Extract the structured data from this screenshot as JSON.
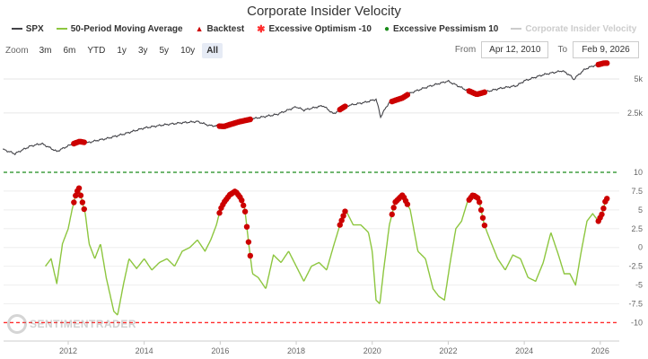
{
  "chart_data": {
    "type": "line",
    "title": "Corporate Insider Velocity",
    "legend": [
      {
        "name": "SPX",
        "color": "#434348",
        "kind": "line",
        "visible": true
      },
      {
        "name": "50-Period Moving Average",
        "color": "#8dc63f",
        "kind": "line",
        "visible": true
      },
      {
        "name": "Backtest",
        "color": "#cc0000",
        "kind": "triangle",
        "visible": true
      },
      {
        "name": "Excessive Optimism -10",
        "color": "#ff2d2d",
        "kind": "dashed",
        "visible": true
      },
      {
        "name": "Excessive Pessimism 10",
        "color": "#1a8c1a",
        "kind": "dashed",
        "visible": true
      },
      {
        "name": "Corporate Insider Velocity",
        "color": "#cccccc",
        "kind": "line",
        "visible": false
      }
    ],
    "x_axis": {
      "min": 2010.3,
      "max": 2026.5,
      "ticks": [
        "2012",
        "2014",
        "2016",
        "2018",
        "2020",
        "2022",
        "2024",
        "2026"
      ]
    },
    "spx_axis": {
      "scale": "log",
      "min": 1000,
      "max": 7200,
      "ticks": [
        {
          "label": "5k",
          "value": 5000
        },
        {
          "label": "2.5k",
          "value": 2500
        }
      ]
    },
    "indicator_axis": {
      "min": -11.5,
      "max": 10,
      "ticks": [
        "10",
        "7.5",
        "5",
        "2.5",
        "0",
        "-2.5",
        "-5",
        "-7.5",
        "-10"
      ]
    },
    "thresholds": {
      "pessimism": 10,
      "optimism": -10
    },
    "spx": {
      "x": [
        2010.28,
        2010.6,
        2011.0,
        2011.3,
        2011.7,
        2012.0,
        2012.3,
        2012.5,
        2012.8,
        2013.0,
        2013.5,
        2014.0,
        2014.5,
        2015.0,
        2015.4,
        2015.7,
        2016.1,
        2016.5,
        2017.0,
        2017.5,
        2018.0,
        2018.2,
        2018.7,
        2018.98,
        2019.3,
        2019.8,
        2020.1,
        2020.22,
        2020.45,
        2020.8,
        2021.0,
        2021.5,
        2021.99,
        2022.4,
        2022.75,
        2023.0,
        2023.4,
        2023.8,
        2024.0,
        2024.5,
        2025.0,
        2025.2,
        2025.3,
        2025.6,
        2025.8,
        2026.1
      ],
      "y": [
        1190,
        1090,
        1270,
        1340,
        1140,
        1280,
        1400,
        1360,
        1440,
        1480,
        1640,
        1840,
        1960,
        2050,
        2100,
        1940,
        1900,
        2090,
        2270,
        2430,
        2830,
        2650,
        2900,
        2450,
        2880,
        3100,
        3300,
        2300,
        3100,
        3400,
        3750,
        4300,
        4780,
        4100,
        3650,
        3850,
        4150,
        4350,
        4800,
        5450,
        5900,
        5400,
        4950,
        6100,
        6500,
        6900
      ]
    },
    "ma": {
      "x": [
        2011.4,
        2011.55,
        2011.7,
        2011.85,
        2012.0,
        2012.1,
        2012.2,
        2012.28,
        2012.35,
        2012.45,
        2012.55,
        2012.7,
        2012.85,
        2013.0,
        2013.2,
        2013.3,
        2013.45,
        2013.6,
        2013.8,
        2014.0,
        2014.2,
        2014.4,
        2014.6,
        2014.8,
        2015.0,
        2015.2,
        2015.4,
        2015.6,
        2015.75,
        2015.9,
        2016.0,
        2016.1,
        2016.25,
        2016.4,
        2016.55,
        2016.65,
        2016.75,
        2016.85,
        2017.0,
        2017.2,
        2017.4,
        2017.6,
        2017.8,
        2018.0,
        2018.2,
        2018.4,
        2018.6,
        2018.8,
        2019.0,
        2019.15,
        2019.3,
        2019.5,
        2019.7,
        2019.9,
        2020.0,
        2020.1,
        2020.2,
        2020.3,
        2020.45,
        2020.6,
        2020.8,
        2021.0,
        2021.2,
        2021.4,
        2021.6,
        2021.75,
        2021.9,
        2022.05,
        2022.2,
        2022.35,
        2022.5,
        2022.65,
        2022.8,
        2022.95,
        2023.1,
        2023.3,
        2023.5,
        2023.7,
        2023.9,
        2024.1,
        2024.3,
        2024.5,
        2024.7,
        2024.9,
        2025.05,
        2025.2,
        2025.35,
        2025.5,
        2025.65,
        2025.8,
        2025.95,
        2026.05,
        2026.15
      ],
      "y": [
        -2.5,
        -1.5,
        -4.8,
        0.5,
        2.5,
        5.0,
        7.0,
        8.0,
        6.5,
        4.5,
        0.5,
        -1.5,
        0.5,
        -4.0,
        -8.5,
        -9.0,
        -5.0,
        -1.5,
        -2.8,
        -1.5,
        -3.0,
        -2.0,
        -1.5,
        -2.5,
        -0.5,
        0.0,
        1.0,
        -0.5,
        1.0,
        3.0,
        5.0,
        6.0,
        7.0,
        7.5,
        6.5,
        5.0,
        0.5,
        -3.5,
        -4.0,
        -5.5,
        -1.0,
        -2.0,
        -0.5,
        -2.5,
        -4.5,
        -2.5,
        -2.0,
        -3.0,
        0.5,
        3.0,
        5.0,
        3.0,
        3.0,
        2.0,
        -0.5,
        -7.0,
        -7.5,
        -3.0,
        3.0,
        6.0,
        7.0,
        5.0,
        -0.5,
        -1.5,
        -5.5,
        -6.5,
        -7.0,
        -2.0,
        2.5,
        3.5,
        6.0,
        7.0,
        6.5,
        3.0,
        1.0,
        -1.5,
        -3.0,
        -1.0,
        -1.5,
        -4.0,
        -4.5,
        -2.0,
        2.0,
        -1.0,
        -3.5,
        -3.5,
        -5.0,
        -0.5,
        3.5,
        4.5,
        3.5,
        4.5,
        6.5
      ]
    },
    "signals": [
      {
        "from": 2012.15,
        "to": 2012.42
      },
      {
        "from": 2015.98,
        "to": 2016.8
      },
      {
        "from": 2019.15,
        "to": 2019.3
      },
      {
        "from": 2020.52,
        "to": 2020.95
      },
      {
        "from": 2022.55,
        "to": 2022.98
      },
      {
        "from": 2025.95,
        "to": 2026.2
      }
    ]
  },
  "zoom": {
    "label": "Zoom",
    "buttons": [
      "3m",
      "6m",
      "YTD",
      "1y",
      "3y",
      "5y",
      "10y",
      "All"
    ],
    "active": "All"
  },
  "range": {
    "from_label": "From",
    "from": "Apr 12, 2010",
    "to_label": "To",
    "to": "Feb 9, 2026"
  },
  "watermark": {
    "text": "SENTIMENTRADER"
  }
}
